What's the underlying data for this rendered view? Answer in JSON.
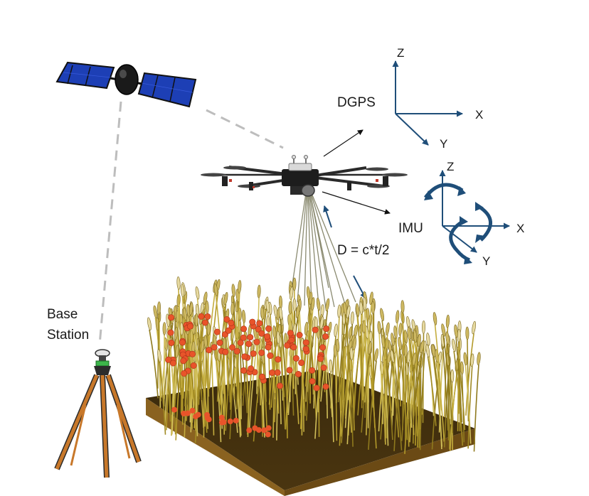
{
  "labels": {
    "dgps": "DGPS",
    "imu": "IMU",
    "formula": "D = c*t/2",
    "base_station_line1": "Base",
    "base_station_line2": "Station"
  },
  "dgps_axes": {
    "z": "Z",
    "x": "X",
    "y": "Y"
  },
  "imu_axes": {
    "z": "Z",
    "x": "X",
    "y": "Y"
  },
  "colors": {
    "axis_blue": "#1f4e79",
    "panel_blue": "#1d3fb5",
    "plot_red": "#e8542a",
    "wheat": "#b39a2a",
    "soil": "#5b3f12",
    "tripod": "#c8782a"
  }
}
